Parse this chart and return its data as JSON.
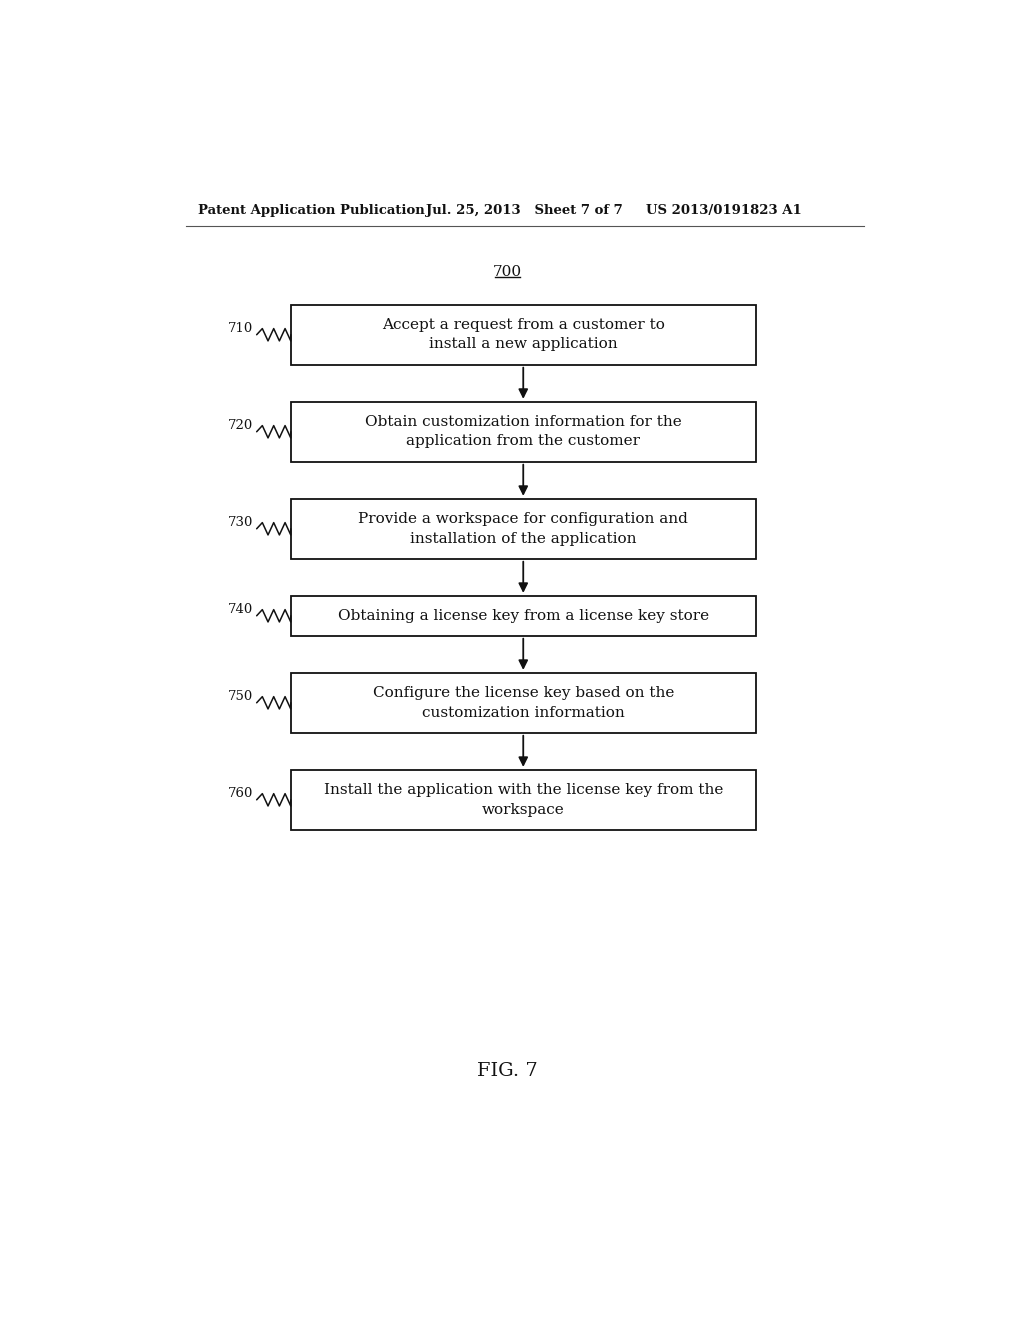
{
  "bg_color": "#ffffff",
  "header_left": "Patent Application Publication",
  "header_mid": "Jul. 25, 2013   Sheet 7 of 7",
  "header_right": "US 2013/0191823 A1",
  "fig_label": "700",
  "fig_caption": "FIG. 7",
  "boxes": [
    {
      "id": "710",
      "label": "Accept a request from a customer to\ninstall a new application"
    },
    {
      "id": "720",
      "label": "Obtain customization information for the\napplication from the customer"
    },
    {
      "id": "730",
      "label": "Provide a workspace for configuration and\ninstallation of the application"
    },
    {
      "id": "740",
      "label": "Obtaining a license key from a license key store"
    },
    {
      "id": "750",
      "label": "Configure the license key based on the\ncustomization information"
    },
    {
      "id": "760",
      "label": "Install the application with the license key from the\nworkspace"
    }
  ]
}
